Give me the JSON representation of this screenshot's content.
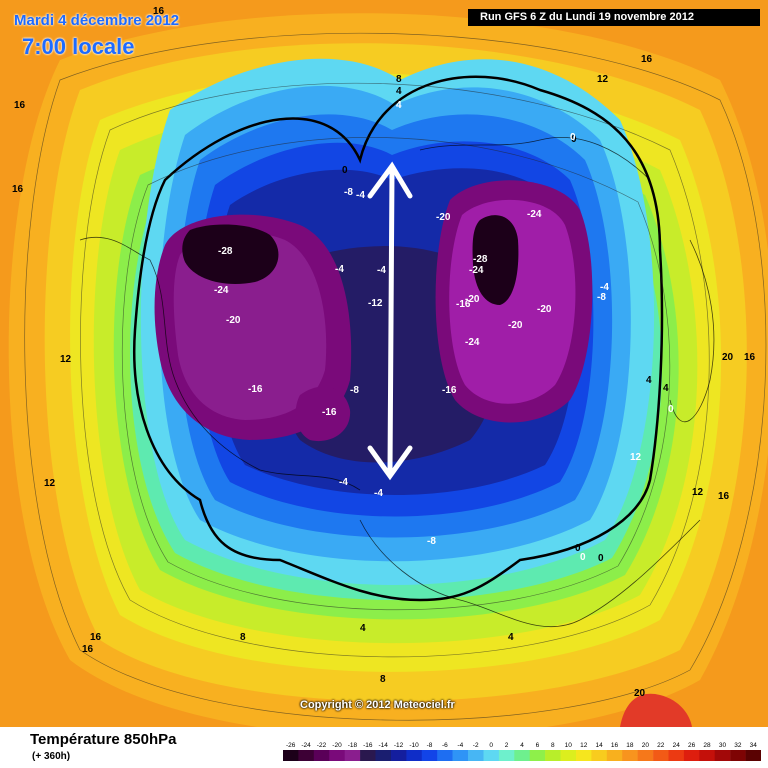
{
  "header": {
    "date": "Mardi 4 décembre 2012",
    "time": "7:00 locale",
    "run": "Run GFS 6 Z du Lundi 19 novembre 2012"
  },
  "copyright": "Copyright © 2012 Meteociel.fr",
  "footer": {
    "title": "Température 850hPa",
    "range": "(+ 360h)"
  },
  "legend": {
    "values": [
      "-26",
      "-24",
      "-22",
      "-20",
      "-18",
      "-16",
      "-14",
      "-12",
      "-10",
      "-8",
      "-6",
      "-4",
      "-2",
      "0",
      "2",
      "4",
      "6",
      "8",
      "10",
      "12",
      "14",
      "16",
      "18",
      "20",
      "22",
      "24",
      "26",
      "28",
      "30",
      "32",
      "34"
    ],
    "colors": [
      "#1c0019",
      "#3d0035",
      "#5a0058",
      "#7a0a7a",
      "#8a1e8e",
      "#2a184e",
      "#1a1e70",
      "#141e9e",
      "#0f2dc8",
      "#1244e8",
      "#1e6ef2",
      "#2f94f6",
      "#47b6f4",
      "#5ed8f2",
      "#6ef0cc",
      "#6ef08e",
      "#8ef04a",
      "#b8ee2a",
      "#dcee1e",
      "#f6e61e",
      "#f8cc1e",
      "#f8b01e",
      "#f8941e",
      "#f6781a",
      "#f25a16",
      "#ec3a12",
      "#de1e0e",
      "#c4100a",
      "#a20808",
      "#7e0404",
      "#5a0202"
    ]
  },
  "map_labels": {
    "n16_tl": "16",
    "n16_l": "16",
    "n16_ll": "16",
    "n16_tr": "16",
    "n12_tr": "12",
    "n12_l": "12",
    "n12_ll": "12",
    "n8_top": "8",
    "n4_top": "4",
    "n0_top": "0",
    "n0_ne": "0",
    "n4_l": "4",
    "n4_bl": "4",
    "n20_r": "20",
    "n16_r": "16",
    "n12_r": "12",
    "n16_br": "16",
    "n16_bl1": "16",
    "n16_bl2": "16",
    "n20_bot": "20",
    "n8_bl": "8",
    "n8_bot": "8",
    "n4_b": "4",
    "n4_bot": "4",
    "n0_br": "0",
    "n0_br2": "0",
    "m28_na": "-28",
    "m24_na": "-24",
    "m20_na": "-20",
    "m16_na": "-16",
    "m16_na2": "-16",
    "m8_na": "-8",
    "m12_c": "-12",
    "m4_c": "-4",
    "m4_c2": "-4",
    "m4_c3": "-4",
    "m20_sib": "-20",
    "m24_sib": "-24",
    "m28_sib": "-28",
    "m24_sib2": "-24",
    "m20_sib2": "-20",
    "m16_sib": "-16",
    "m20_sib3": "-20",
    "m20_sib4": "-20",
    "m24_sib3": "-24",
    "m16_sib2": "-16",
    "m8_sib": "-8",
    "m8_eu": "-8",
    "m4_sib": "-4",
    "m4_eu": "-4",
    "m4_ar": "-4",
    "m8_ar": "-8",
    "n0_ar": "0",
    "n0_ar2": "0",
    "n0_ak": "0",
    "n4_ak": "4",
    "n12_ak": "12"
  }
}
